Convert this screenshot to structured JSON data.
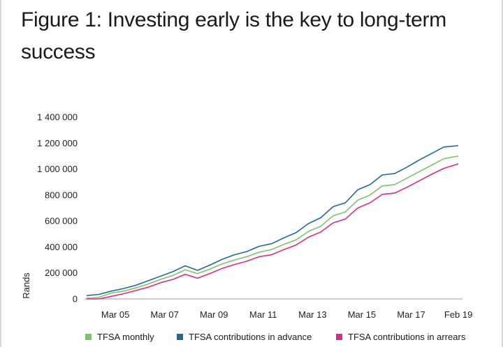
{
  "title": "Figure 1: Investing early is the key to long-term success",
  "chart_data": {
    "type": "line",
    "ylabel": "Rands",
    "xlabel": "",
    "ylim": [
      0,
      1400000
    ],
    "yticks": [
      {
        "value": 0,
        "label": "0"
      },
      {
        "value": 200000,
        "label": "200 000"
      },
      {
        "value": 400000,
        "label": "400 000"
      },
      {
        "value": 600000,
        "label": "600 000"
      },
      {
        "value": 800000,
        "label": "800 000"
      },
      {
        "value": 1000000,
        "label": "1 000 000"
      },
      {
        "value": 1200000,
        "label": "1 200 000"
      },
      {
        "value": 1400000,
        "label": "1 400 000"
      }
    ],
    "xlim": [
      "2003-12",
      "2019-04"
    ],
    "xticks": [
      {
        "date": "2005-03",
        "label": "Mar 05"
      },
      {
        "date": "2007-03",
        "label": "Mar 07"
      },
      {
        "date": "2009-03",
        "label": "Mar 09"
      },
      {
        "date": "2011-03",
        "label": "Mar 11"
      },
      {
        "date": "2013-03",
        "label": "Mar 13"
      },
      {
        "date": "2015-03",
        "label": "Mar 15"
      },
      {
        "date": "2017-03",
        "label": "Mar 17"
      },
      {
        "date": "2019-02",
        "label": "Feb 19"
      }
    ],
    "grid": false,
    "legend_position": "bottom",
    "x": [
      "2004-01",
      "2004-07",
      "2005-01",
      "2005-07",
      "2006-01",
      "2006-07",
      "2007-01",
      "2007-07",
      "2008-01",
      "2008-07",
      "2009-01",
      "2009-07",
      "2010-01",
      "2010-07",
      "2011-01",
      "2011-07",
      "2012-01",
      "2012-07",
      "2013-01",
      "2013-07",
      "2014-01",
      "2014-07",
      "2015-01",
      "2015-07",
      "2016-01",
      "2016-07",
      "2017-01",
      "2017-07",
      "2018-01",
      "2018-07",
      "2019-02"
    ],
    "series": [
      {
        "name": "TFSA monthly",
        "color": "#7dc36b",
        "values": [
          5000,
          12000,
          45000,
          60000,
          85000,
          115000,
          150000,
          180000,
          225000,
          195000,
          230000,
          270000,
          300000,
          325000,
          360000,
          380000,
          420000,
          455000,
          520000,
          560000,
          640000,
          670000,
          760000,
          800000,
          870000,
          880000,
          930000,
          980000,
          1030000,
          1080000,
          1100000
        ]
      },
      {
        "name": "TFSA contributions in advance",
        "color": "#1f6b96",
        "values": [
          25000,
          35000,
          60000,
          80000,
          105000,
          140000,
          175000,
          210000,
          255000,
          220000,
          260000,
          305000,
          340000,
          365000,
          405000,
          425000,
          470000,
          510000,
          580000,
          625000,
          710000,
          740000,
          840000,
          880000,
          955000,
          965000,
          1015000,
          1070000,
          1120000,
          1170000,
          1180000
        ]
      },
      {
        "name": "TFSA contributions in arrears",
        "color": "#e0288a",
        "values": [
          0,
          0,
          20000,
          40000,
          65000,
          90000,
          125000,
          150000,
          190000,
          160000,
          195000,
          235000,
          265000,
          290000,
          325000,
          340000,
          380000,
          415000,
          475000,
          515000,
          585000,
          615000,
          700000,
          740000,
          805000,
          815000,
          860000,
          910000,
          960000,
          1005000,
          1040000
        ]
      }
    ]
  }
}
